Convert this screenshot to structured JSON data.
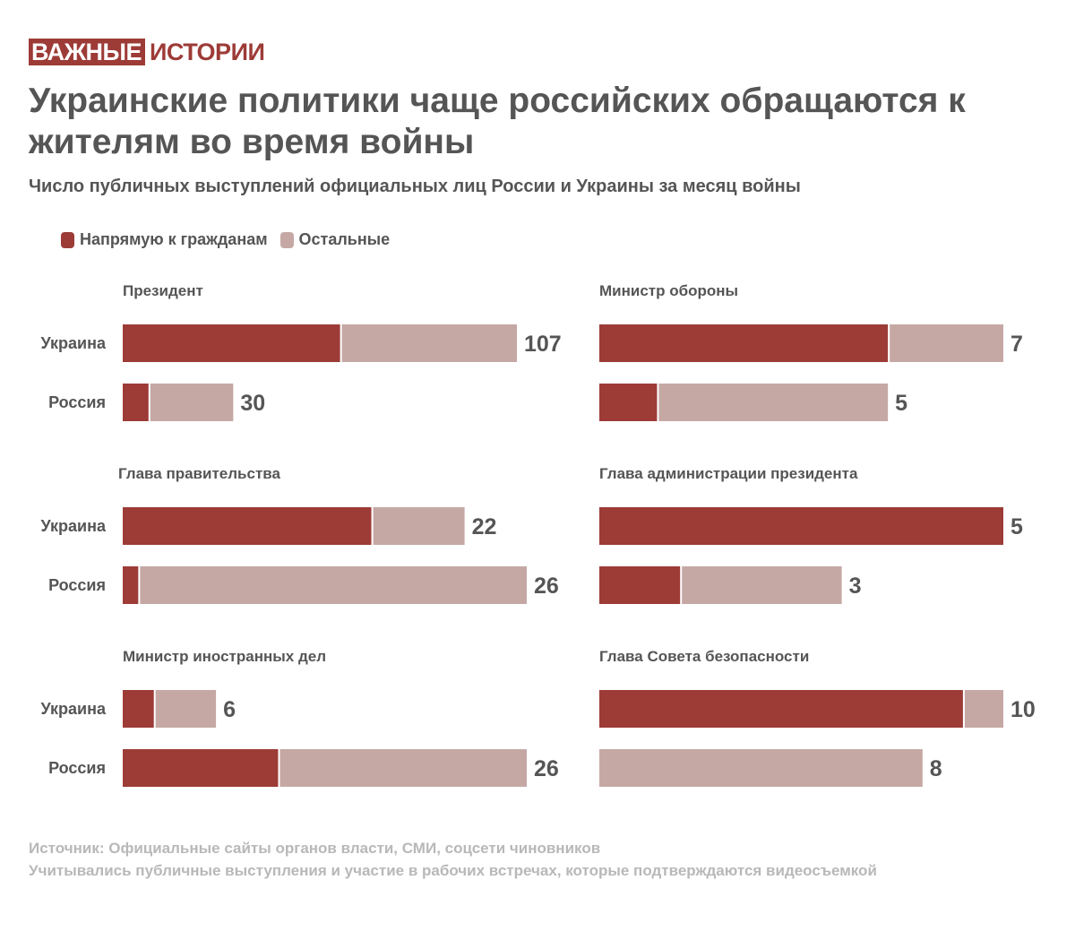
{
  "logo": {
    "part1": "ВАЖНЫЕ",
    "part2": "ИСТОРИИ"
  },
  "title": "Украинские политики чаще российских обращаются к жителям во время войны",
  "subtitle": "Число публичных выступлений официальных лиц России и Украины за месяц войны",
  "legend": [
    {
      "label": "Напрямую к гражданам",
      "color": "#9d3b37"
    },
    {
      "label": "Остальные",
      "color": "#c5a8a4"
    }
  ],
  "footer": {
    "source": "Источник: Официальные сайты органов власти, СМИ, соцсети чиновников",
    "note": "Учитывались публичные выступления и участие в рабочих встречах, которые подтверждаются видеосъемкой"
  },
  "colors": {
    "direct": "#9d3b37",
    "other": "#c5a8a4"
  },
  "chart_data": [
    {
      "type": "bar",
      "title": "Президент",
      "categories": [
        "Украина",
        "Россия"
      ],
      "series": [
        {
          "name": "Напрямую к гражданам",
          "values": [
            59,
            7
          ]
        },
        {
          "name": "Остальные",
          "values": [
            48,
            23
          ]
        }
      ],
      "totals": [
        107,
        30
      ]
    },
    {
      "type": "bar",
      "title": "Министр обороны",
      "categories": [
        "Украина",
        "Россия"
      ],
      "series": [
        {
          "name": "Напрямую к гражданам",
          "values": [
            5,
            1
          ]
        },
        {
          "name": "Остальные",
          "values": [
            2,
            4
          ]
        }
      ],
      "totals": [
        7,
        5
      ]
    },
    {
      "type": "bar",
      "title": "Глава правительства",
      "categories": [
        "Украина",
        "Россия"
      ],
      "series": [
        {
          "name": "Напрямую к гражданам",
          "values": [
            16,
            1
          ]
        },
        {
          "name": "Остальные",
          "values": [
            6,
            25
          ]
        }
      ],
      "totals": [
        22,
        26
      ]
    },
    {
      "type": "bar",
      "title": "Глава администрации президента",
      "categories": [
        "Украина",
        "Россия"
      ],
      "series": [
        {
          "name": "Напрямую к гражданам",
          "values": [
            5,
            1
          ]
        },
        {
          "name": "Остальные",
          "values": [
            0,
            2
          ]
        }
      ],
      "totals": [
        5,
        3
      ]
    },
    {
      "type": "bar",
      "title": "Министр иностранных дел",
      "categories": [
        "Украина",
        "Россия"
      ],
      "series": [
        {
          "name": "Напрямую к гражданам",
          "values": [
            2,
            10
          ]
        },
        {
          "name": "Остальные",
          "values": [
            4,
            16
          ]
        }
      ],
      "totals": [
        6,
        26
      ]
    },
    {
      "type": "bar",
      "title": "Глава Совета безопасности",
      "categories": [
        "Украина",
        "Россия"
      ],
      "series": [
        {
          "name": "Напрямую к гражданам",
          "values": [
            9,
            0
          ]
        },
        {
          "name": "Остальные",
          "values": [
            1,
            8
          ]
        }
      ],
      "totals": [
        10,
        8
      ]
    }
  ]
}
